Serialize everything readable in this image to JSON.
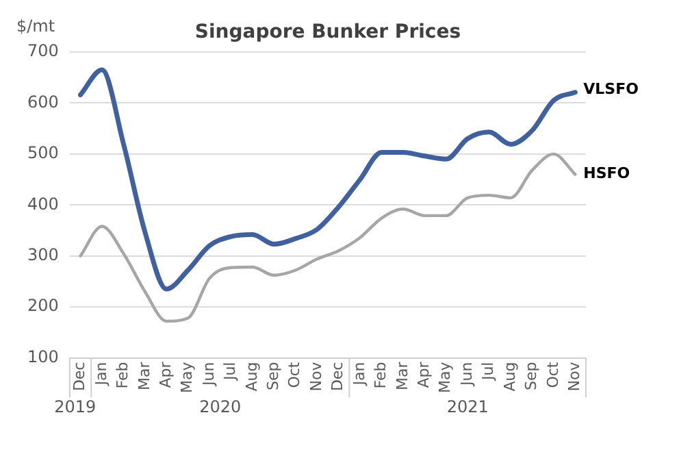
{
  "chart_data": {
    "type": "line",
    "title": "Singapore Bunker Prices",
    "ylabel": "$/mt",
    "categories": [
      "Dec",
      "Jan",
      "Feb",
      "Mar",
      "Apr",
      "May",
      "Jun",
      "Jul",
      "Aug",
      "Sep",
      "Oct",
      "Nov",
      "Dec",
      "Jan",
      "Feb",
      "Mar",
      "Apr",
      "May",
      "Jun",
      "Jul",
      "Aug",
      "Sep",
      "Oct",
      "Nov"
    ],
    "series": [
      {
        "name": "VLSFO",
        "color": "#40609e",
        "values": [
          616,
          665,
          520,
          347,
          235,
          272,
          320,
          338,
          342,
          323,
          334,
          352,
          396,
          450,
          503,
          503,
          496,
          490,
          530,
          543,
          519,
          546,
          605,
          621
        ]
      },
      {
        "name": "HSFO",
        "color": "#a6a6a6",
        "values": [
          300,
          358,
          305,
          230,
          172,
          178,
          256,
          277,
          278,
          262,
          272,
          294,
          310,
          336,
          374,
          392,
          379,
          379,
          414,
          419,
          414,
          468,
          500,
          460
        ]
      }
    ],
    "annotations": [
      "2019",
      "2020",
      "2021"
    ],
    "ylim": [
      100,
      700
    ],
    "yticks": [
      100,
      200,
      300,
      400,
      500,
      600,
      700
    ],
    "grid": "y",
    "legend": false,
    "marker": "none",
    "line_style": "solid"
  }
}
